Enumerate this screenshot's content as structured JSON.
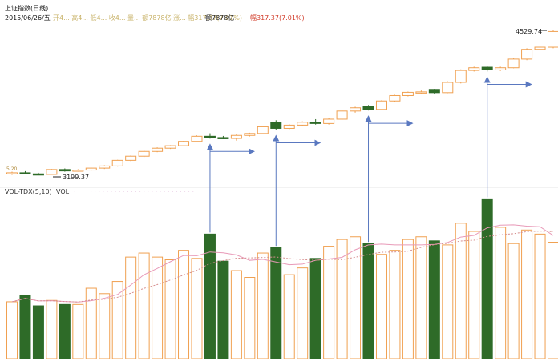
{
  "header": {
    "title": "上证指数(日线)",
    "date": "2015/06/26/五",
    "quote_partial": "开4... 高4... 低4... 收4... 量... 额7878亿 涨... 幅317.37(7.01%)",
    "amount": "额7878亿",
    "change": "幅317.37(7.01%)"
  },
  "volume_panel": {
    "title": "VOL-TDX(5,10)",
    "label": "VOL"
  },
  "annotations": {
    "low_price_label": "3199.37",
    "high_price_label": "4529.74",
    "left_tick_label": "5.20"
  },
  "colors": {
    "up": "#f0a050",
    "down": "#2e6b28",
    "ma_short": "#e89ab8",
    "ma_long": "#d68e8e",
    "arrow": "#5a78c0",
    "panel_line": "#d9d9d9"
  },
  "chart_data": {
    "type": "candlestick",
    "note_units": "price in index points, volume relative",
    "candles": [
      {
        "o": 3210,
        "h": 3225,
        "l": 3195,
        "c": 3215,
        "v": 42,
        "dir": "up"
      },
      {
        "o": 3215,
        "h": 3230,
        "l": 3200,
        "c": 3205,
        "v": 47,
        "dir": "down"
      },
      {
        "o": 3205,
        "h": 3215,
        "l": 3199,
        "c": 3202,
        "v": 39,
        "dir": "down"
      },
      {
        "o": 3200,
        "h": 3250,
        "l": 3199,
        "c": 3245,
        "v": 43,
        "dir": "up"
      },
      {
        "o": 3245,
        "h": 3255,
        "l": 3225,
        "c": 3232,
        "v": 40,
        "dir": "down"
      },
      {
        "o": 3232,
        "h": 3248,
        "l": 3225,
        "c": 3240,
        "v": 40,
        "dir": "up"
      },
      {
        "o": 3240,
        "h": 3262,
        "l": 3235,
        "c": 3258,
        "v": 52,
        "dir": "up"
      },
      {
        "o": 3258,
        "h": 3285,
        "l": 3250,
        "c": 3278,
        "v": 48,
        "dir": "up"
      },
      {
        "o": 3278,
        "h": 3335,
        "l": 3272,
        "c": 3330,
        "v": 57,
        "dir": "up"
      },
      {
        "o": 3330,
        "h": 3375,
        "l": 3322,
        "c": 3368,
        "v": 75,
        "dir": "up"
      },
      {
        "o": 3368,
        "h": 3420,
        "l": 3360,
        "c": 3412,
        "v": 78,
        "dir": "up"
      },
      {
        "o": 3412,
        "h": 3450,
        "l": 3405,
        "c": 3442,
        "v": 75,
        "dir": "up"
      },
      {
        "o": 3442,
        "h": 3470,
        "l": 3435,
        "c": 3465,
        "v": 73,
        "dir": "up"
      },
      {
        "o": 3465,
        "h": 3510,
        "l": 3460,
        "c": 3505,
        "v": 80,
        "dir": "up"
      },
      {
        "o": 3505,
        "h": 3560,
        "l": 3498,
        "c": 3552,
        "v": 74,
        "dir": "up"
      },
      {
        "o": 3552,
        "h": 3580,
        "l": 3530,
        "c": 3540,
        "v": 92,
        "dir": "down"
      },
      {
        "o": 3540,
        "h": 3555,
        "l": 3525,
        "c": 3532,
        "v": 72,
        "dir": "down"
      },
      {
        "o": 3532,
        "h": 3570,
        "l": 3512,
        "c": 3560,
        "v": 65,
        "dir": "up"
      },
      {
        "o": 3560,
        "h": 3585,
        "l": 3550,
        "c": 3578,
        "v": 60,
        "dir": "up"
      },
      {
        "o": 3578,
        "h": 3650,
        "l": 3570,
        "c": 3640,
        "v": 78,
        "dir": "up"
      },
      {
        "o": 3680,
        "h": 3700,
        "l": 3610,
        "c": 3625,
        "v": 82,
        "dir": "down"
      },
      {
        "o": 3625,
        "h": 3665,
        "l": 3615,
        "c": 3655,
        "v": 62,
        "dir": "up"
      },
      {
        "o": 3655,
        "h": 3690,
        "l": 3645,
        "c": 3682,
        "v": 67,
        "dir": "up"
      },
      {
        "o": 3682,
        "h": 3710,
        "l": 3660,
        "c": 3670,
        "v": 74,
        "dir": "down"
      },
      {
        "o": 3670,
        "h": 3720,
        "l": 3660,
        "c": 3710,
        "v": 83,
        "dir": "up"
      },
      {
        "o": 3710,
        "h": 3790,
        "l": 3705,
        "c": 3785,
        "v": 88,
        "dir": "up"
      },
      {
        "o": 3785,
        "h": 3825,
        "l": 3770,
        "c": 3815,
        "v": 90,
        "dir": "up"
      },
      {
        "o": 3830,
        "h": 3840,
        "l": 3790,
        "c": 3800,
        "v": 85,
        "dir": "down"
      },
      {
        "o": 3800,
        "h": 3885,
        "l": 3795,
        "c": 3878,
        "v": 77,
        "dir": "up"
      },
      {
        "o": 3878,
        "h": 3935,
        "l": 3870,
        "c": 3928,
        "v": 80,
        "dir": "up"
      },
      {
        "o": 3928,
        "h": 3965,
        "l": 3920,
        "c": 3958,
        "v": 88,
        "dir": "up"
      },
      {
        "o": 3958,
        "h": 3975,
        "l": 3945,
        "c": 3962,
        "v": 90,
        "dir": "up"
      },
      {
        "o": 3985,
        "h": 3990,
        "l": 3945,
        "c": 3955,
        "v": 87,
        "dir": "down"
      },
      {
        "o": 3955,
        "h": 4060,
        "l": 3950,
        "c": 4050,
        "v": 84,
        "dir": "up"
      },
      {
        "o": 4050,
        "h": 4170,
        "l": 4040,
        "c": 4160,
        "v": 100,
        "dir": "up"
      },
      {
        "o": 4160,
        "h": 4195,
        "l": 4150,
        "c": 4185,
        "v": 94,
        "dir": "up"
      },
      {
        "o": 4190,
        "h": 4200,
        "l": 4150,
        "c": 4165,
        "v": 118,
        "dir": "down"
      },
      {
        "o": 4165,
        "h": 4195,
        "l": 4155,
        "c": 4185,
        "v": 97,
        "dir": "up"
      },
      {
        "o": 4185,
        "h": 4275,
        "l": 4180,
        "c": 4265,
        "v": 85,
        "dir": "up"
      },
      {
        "o": 4265,
        "h": 4365,
        "l": 4255,
        "c": 4355,
        "v": 95,
        "dir": "up"
      },
      {
        "o": 4355,
        "h": 4385,
        "l": 4345,
        "c": 4375,
        "v": 92,
        "dir": "up"
      },
      {
        "o": 4375,
        "h": 4530,
        "l": 4365,
        "c": 4520,
        "v": 86,
        "dir": "up"
      }
    ]
  }
}
